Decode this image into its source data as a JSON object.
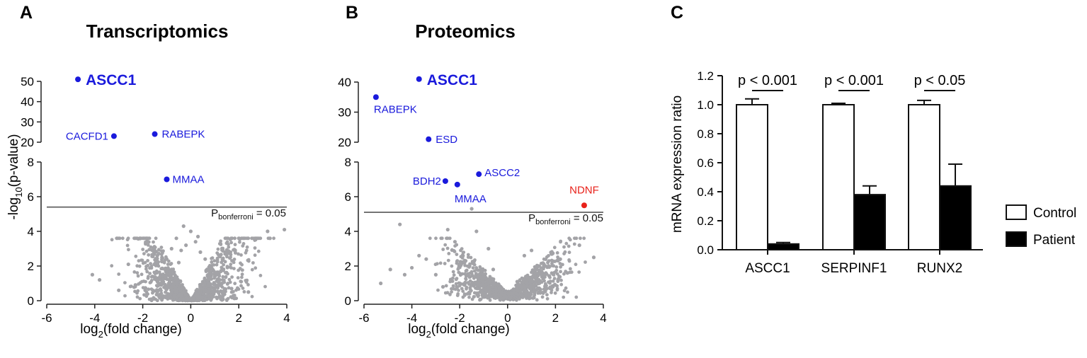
{
  "panels": {
    "a": {
      "letter": "A",
      "title": "Transcriptomics"
    },
    "b": {
      "letter": "B",
      "title": "Proteomics"
    },
    "c": {
      "letter": "C"
    }
  },
  "threshold_label": {
    "main": "P",
    "sub": "bonferroni",
    "suffix": " = 0.05"
  },
  "chart_data": [
    {
      "type": "scatter",
      "id": "transcriptomics",
      "title": "Transcriptomics",
      "xlabel_main": "log",
      "xlabel_sub": "2",
      "xlabel_suffix": "(fold change)",
      "ylabel_prefix": "-log",
      "ylabel_sub": "10",
      "ylabel_suffix": "(p-value)",
      "xlim": [
        -6,
        4
      ],
      "xticks": [
        -6,
        -4,
        -2,
        0,
        2,
        4
      ],
      "y_axis_break": true,
      "ylim_lower": [
        0,
        8
      ],
      "yticks_lower": [
        0,
        2,
        4,
        6,
        8
      ],
      "ylim_upper": [
        20,
        50
      ],
      "yticks_upper": [
        20,
        30,
        40,
        50
      ],
      "threshold_y": 5.4,
      "labeled_points": [
        {
          "label": "ASCC1",
          "x": -4.7,
          "y": 51,
          "color": "#1a1adc",
          "emphasis": true
        },
        {
          "label": "CACFD1",
          "x": -3.2,
          "y": 23,
          "color": "#1a1adc"
        },
        {
          "label": "RABEPK",
          "x": -1.5,
          "y": 24,
          "color": "#1a1adc"
        },
        {
          "label": "MMAA",
          "x": -1.0,
          "y": 7.0,
          "color": "#1a1adc"
        }
      ],
      "background_points": [
        [
          -4.1,
          1.5
        ],
        [
          -2.6,
          2.1
        ],
        [
          -2.3,
          0.9
        ],
        [
          -1.9,
          0.6
        ],
        [
          -1.6,
          1.4
        ],
        [
          -1.2,
          2.5
        ],
        [
          -1.0,
          1.8
        ],
        [
          -0.8,
          3.0
        ],
        [
          -0.6,
          3.6
        ],
        [
          -0.5,
          2.2
        ],
        [
          -0.3,
          4.3
        ],
        [
          -0.2,
          3.2
        ],
        [
          0.0,
          4.0
        ],
        [
          0.2,
          3.4
        ],
        [
          0.4,
          2.8
        ],
        [
          0.6,
          2.4
        ],
        [
          0.8,
          1.9
        ],
        [
          1.0,
          1.4
        ],
        [
          1.3,
          1.0
        ],
        [
          1.7,
          0.7
        ],
        [
          2.1,
          1.1
        ],
        [
          2.4,
          0.5
        ],
        [
          3.2,
          4.0
        ],
        [
          3.3,
          3.6
        ],
        [
          3.9,
          4.1
        ],
        [
          -3.8,
          1.2
        ],
        [
          -3.0,
          0.6
        ],
        [
          1.1,
          2.3
        ],
        [
          -0.4,
          2.9
        ],
        [
          0.3,
          3.7
        ]
      ]
    },
    {
      "type": "scatter",
      "id": "proteomics",
      "title": "Proteomics",
      "xlabel_main": "log",
      "xlabel_sub": "2",
      "xlabel_suffix": "(fold change)",
      "xlim": [
        -6,
        4
      ],
      "xticks": [
        -6,
        -4,
        -2,
        0,
        2,
        4
      ],
      "y_axis_break": true,
      "ylim_lower": [
        0,
        8
      ],
      "yticks_lower": [
        0,
        2,
        4,
        6,
        8
      ],
      "ylim_upper": [
        20,
        40
      ],
      "yticks_upper": [
        20,
        30,
        40
      ],
      "threshold_y": 5.1,
      "labeled_points": [
        {
          "label": "ASCC1",
          "x": -3.7,
          "y": 41,
          "color": "#1a1adc",
          "emphasis": true
        },
        {
          "label": "RABEPK",
          "x": -5.5,
          "y": 35,
          "color": "#1a1adc"
        },
        {
          "label": "ESD",
          "x": -3.3,
          "y": 21,
          "color": "#1a1adc"
        },
        {
          "label": "ASCC2",
          "x": -1.2,
          "y": 7.3,
          "color": "#1a1adc"
        },
        {
          "label": "BDH2",
          "x": -2.6,
          "y": 6.9,
          "color": "#1a1adc"
        },
        {
          "label": "MMAA",
          "x": -2.1,
          "y": 6.7,
          "color": "#1a1adc"
        },
        {
          "label": "NDNF",
          "x": 3.2,
          "y": 5.5,
          "color": "#e8211a"
        }
      ],
      "background_points": [
        [
          -5.3,
          1.0
        ],
        [
          -4.5,
          4.4
        ],
        [
          -4.0,
          1.9
        ],
        [
          -3.4,
          2.4
        ],
        [
          -3.0,
          1.5
        ],
        [
          -2.7,
          0.8
        ],
        [
          -2.2,
          3.4
        ],
        [
          -1.8,
          2.2
        ],
        [
          -1.5,
          5.3
        ],
        [
          -1.3,
          4.0
        ],
        [
          -1.0,
          1.3
        ],
        [
          -0.6,
          1.8
        ],
        [
          -0.3,
          0.7
        ],
        [
          0.4,
          1.1
        ],
        [
          0.7,
          2.6
        ],
        [
          1.0,
          2.9
        ],
        [
          1.3,
          2.0
        ],
        [
          1.6,
          1.6
        ],
        [
          2.0,
          0.9
        ],
        [
          2.5,
          1.6
        ],
        [
          3.0,
          3.2
        ],
        [
          3.6,
          2.5
        ],
        [
          -4.9,
          1.8
        ],
        [
          -3.7,
          2.6
        ],
        [
          -2.5,
          4.1
        ],
        [
          -2.0,
          1.0
        ],
        [
          -0.8,
          3.0
        ],
        [
          1.1,
          0.6
        ],
        [
          2.2,
          2.4
        ],
        [
          -4.3,
          1.5
        ]
      ]
    },
    {
      "type": "bar",
      "id": "mrna",
      "ylabel": "mRNA expression ratio",
      "ylim": [
        0,
        1.2
      ],
      "yticks": [
        "0.0",
        "0.2",
        "0.4",
        "0.6",
        "0.8",
        "1.0",
        "1.2"
      ],
      "categories": [
        "ASCC1",
        "SERPINF1",
        "RUNX2"
      ],
      "series": [
        {
          "name": "Control",
          "fill": "#ffffff",
          "values": [
            1.0,
            1.0,
            1.0
          ],
          "errors": [
            0.04,
            0.01,
            0.03
          ]
        },
        {
          "name": "Patient",
          "fill": "#000000",
          "values": [
            0.04,
            0.38,
            0.44
          ],
          "errors": [
            0.01,
            0.06,
            0.15
          ]
        }
      ],
      "significance": [
        "p < 0.001",
        "p < 0.001",
        "p < 0.05"
      ],
      "legend_position": "right"
    }
  ]
}
